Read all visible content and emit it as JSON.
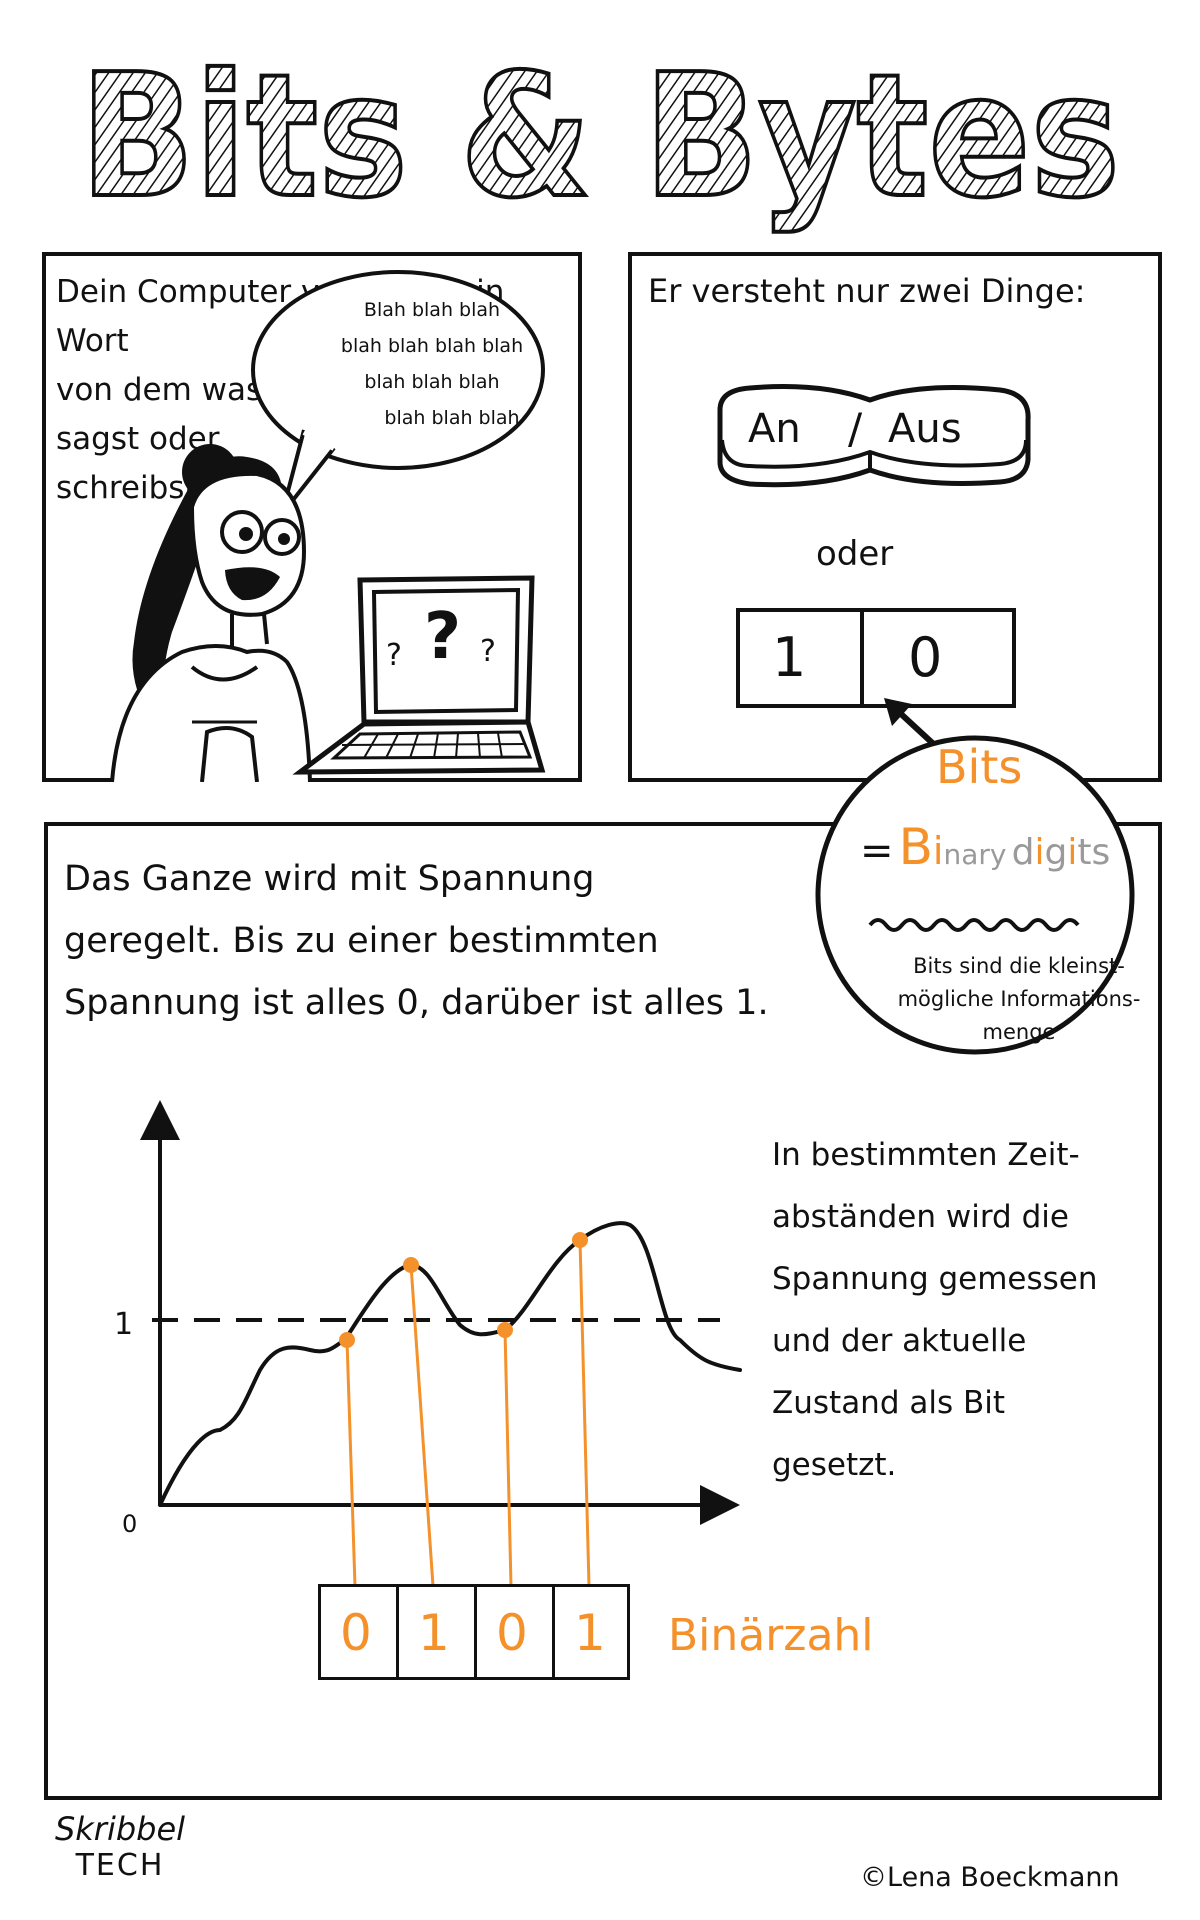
{
  "title": "Bits & Bytes",
  "panel1": {
    "text_lines": [
      "Dein Computer versteht kein Wort",
      "von dem was du",
      "sagst oder",
      "schreibst."
    ],
    "speech_lines": [
      "Blah blah blah",
      "blah blah blah blah",
      "blah blah blah",
      "blah blah blah"
    ],
    "screen_marks": [
      "?",
      "?",
      "?"
    ]
  },
  "panel2": {
    "heading": "Er versteht nur zwei Dinge:",
    "switch_on": "An",
    "switch_slash": "/",
    "switch_off": "Aus",
    "oder": "oder",
    "bit_one": "1",
    "bit_zero": "0"
  },
  "bits_circle": {
    "title": "Bits",
    "eq": "=",
    "binary_b": "B",
    "binary_i": "i",
    "binary_nary": "nary",
    "digits_d": "d",
    "digits_i": "i",
    "digits_g": "g",
    "digits_i2": "i",
    "digits_ts": "ts",
    "note_lines": [
      "Bits sind die kleinst-",
      "mögliche Informations-",
      "menge"
    ]
  },
  "panel3": {
    "text_lines": [
      "Das Ganze wird mit Spannung",
      "geregelt. Bis zu einer bestimmten",
      "Spannung ist alles 0, darüber ist alles 1."
    ],
    "side_lines": [
      "In bestimmten Zeit-",
      "abständen wird die",
      "Spannung gemessen",
      "und der aktuelle",
      "Zustand als Bit",
      "gesetzt."
    ],
    "y_label_zero": "0",
    "y_label_one": "1",
    "binary_digits": [
      "0",
      "1",
      "0",
      "1"
    ],
    "binary_label": "Binärzahl"
  },
  "chart_data": {
    "type": "line",
    "threshold": 1,
    "y_ticks": [
      "0",
      "1"
    ],
    "sample_points": [
      {
        "order": 1,
        "level": "below threshold",
        "bit": "0"
      },
      {
        "order": 2,
        "level": "above threshold",
        "bit": "1"
      },
      {
        "order": 3,
        "level": "below threshold",
        "bit": "0"
      },
      {
        "order": 4,
        "level": "above threshold",
        "bit": "1"
      }
    ]
  },
  "footer": {
    "logo_top": "Skribbel",
    "logo_bottom": "TECH",
    "copyright": "©Lena Boeckmann"
  },
  "colors": {
    "accent": "#f4912b",
    "ink": "#111111",
    "gray": "#9a9a9a",
    "paper": "#ffffff"
  }
}
